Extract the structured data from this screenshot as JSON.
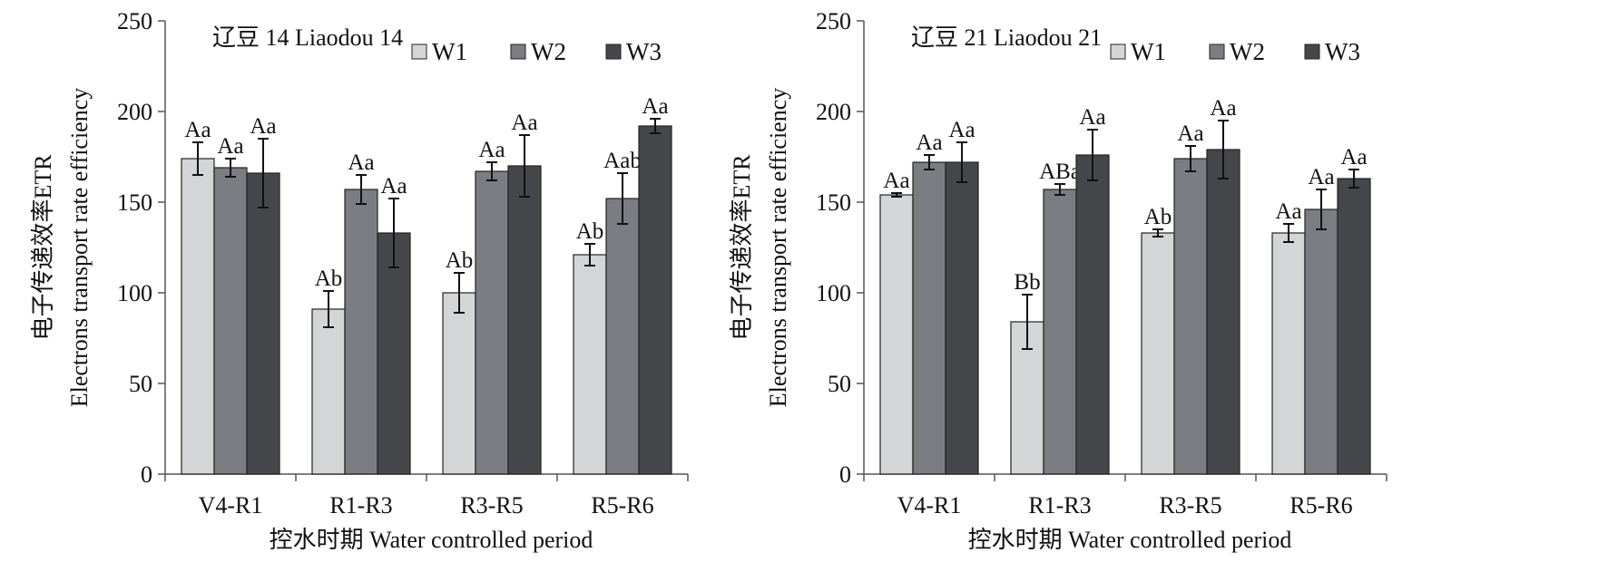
{
  "ylabel_cn": "电子传递效率ETR",
  "ylabel_en": "Electrons transport rate efficiency",
  "xlabel": "控水时期 Water controlled period",
  "colors": {
    "W1": "#d4d5d7",
    "W2": "#7b7d82",
    "W3": "#45474b",
    "axis": "#555555",
    "error": "#111111"
  },
  "chart_data": [
    {
      "type": "bar",
      "title": "辽豆 14 Liaodou 14",
      "categories": [
        "V4-R1",
        "R1-R3",
        "R3-R5",
        "R5-R6"
      ],
      "ylim": [
        0,
        250
      ],
      "yticks": [
        0,
        50,
        100,
        150,
        200,
        250
      ],
      "legend": "top-right",
      "grid": false,
      "series": [
        {
          "name": "W1",
          "values": [
            174,
            91,
            100,
            121
          ],
          "errors": [
            9,
            10,
            11,
            6
          ],
          "labels": [
            "Aa",
            "Ab",
            "Ab",
            "Ab"
          ]
        },
        {
          "name": "W2",
          "values": [
            169,
            157,
            167,
            152
          ],
          "errors": [
            5,
            8,
            5,
            14
          ],
          "labels": [
            "Aa",
            "Aa",
            "Aa",
            "Aab"
          ]
        },
        {
          "name": "W3",
          "values": [
            166,
            133,
            170,
            192
          ],
          "errors": [
            19,
            19,
            17,
            4
          ],
          "labels": [
            "Aa",
            "Aa",
            "Aa",
            "Aa"
          ]
        }
      ]
    },
    {
      "type": "bar",
      "title": "辽豆 21 Liaodou 21",
      "categories": [
        "V4-R1",
        "R1-R3",
        "R3-R5",
        "R5-R6"
      ],
      "ylim": [
        0,
        250
      ],
      "yticks": [
        0,
        50,
        100,
        150,
        200,
        250
      ],
      "legend": "top-right",
      "grid": false,
      "series": [
        {
          "name": "W1",
          "values": [
            154,
            84,
            133,
            133
          ],
          "errors": [
            1,
            15,
            2,
            5
          ],
          "labels": [
            "Aa",
            "Bb",
            "Ab",
            "Aa"
          ]
        },
        {
          "name": "W2",
          "values": [
            172,
            157,
            174,
            146
          ],
          "errors": [
            4,
            3,
            7,
            11
          ],
          "labels": [
            "Aa",
            "ABa",
            "Aa",
            "Aa"
          ]
        },
        {
          "name": "W3",
          "values": [
            172,
            176,
            179,
            163
          ],
          "errors": [
            11,
            14,
            16,
            5
          ],
          "labels": [
            "Aa",
            "Aa",
            "Aa",
            "Aa"
          ]
        }
      ]
    }
  ]
}
